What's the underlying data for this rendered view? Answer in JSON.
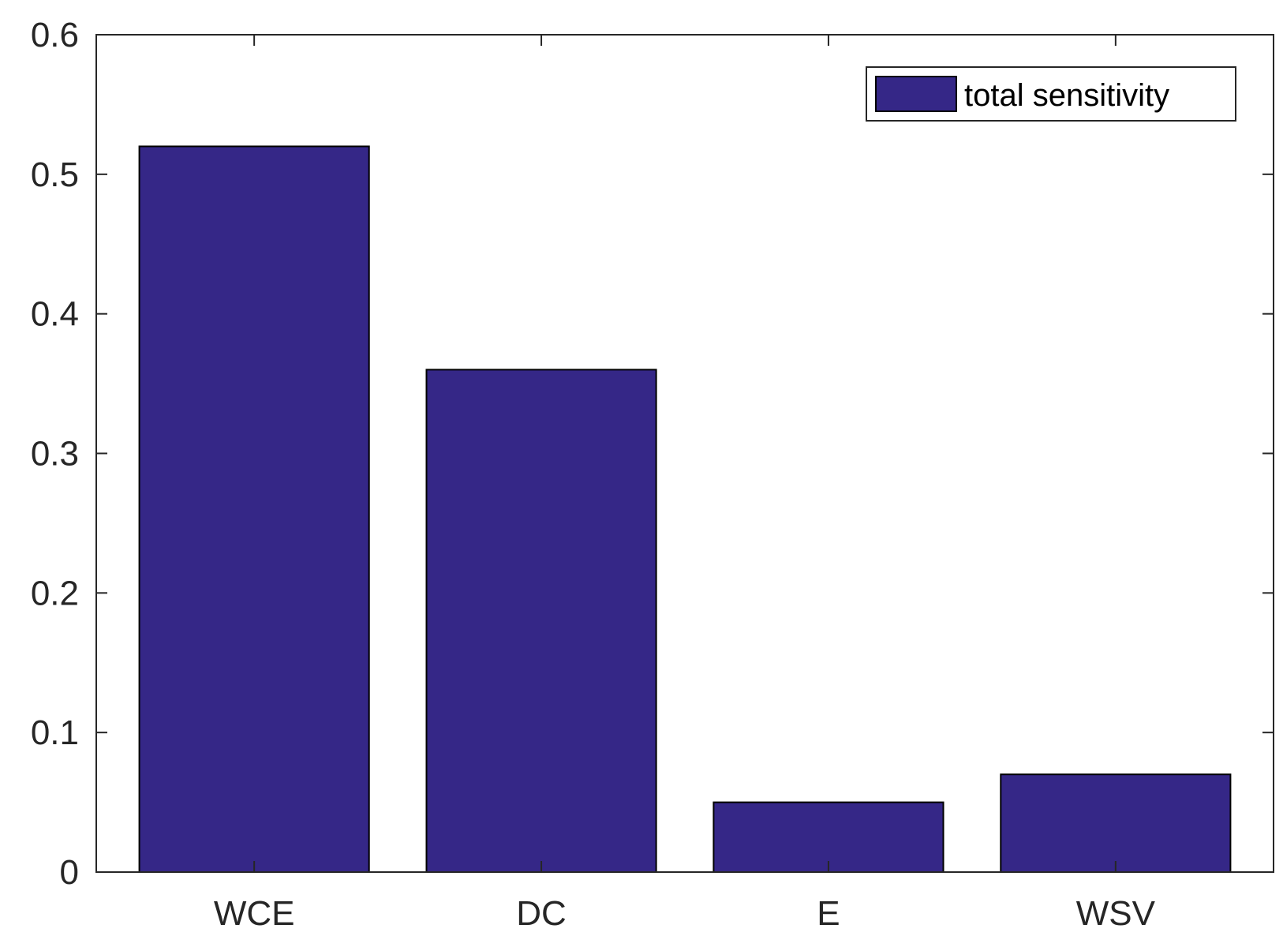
{
  "chart_data": {
    "type": "bar",
    "categories": [
      "WCE",
      "DC",
      "E",
      "WSV"
    ],
    "series": [
      {
        "name": "total sensitivity",
        "values": [
          0.52,
          0.36,
          0.05,
          0.07
        ]
      }
    ],
    "ylim": [
      0,
      0.6
    ],
    "yticks": [
      "0",
      "0.1",
      "0.2",
      "0.3",
      "0.4",
      "0.5",
      "0.6"
    ],
    "title": "",
    "xlabel": "",
    "ylabel": "",
    "grid": false,
    "legend_position": "top-right",
    "bar_color": "#352787"
  }
}
